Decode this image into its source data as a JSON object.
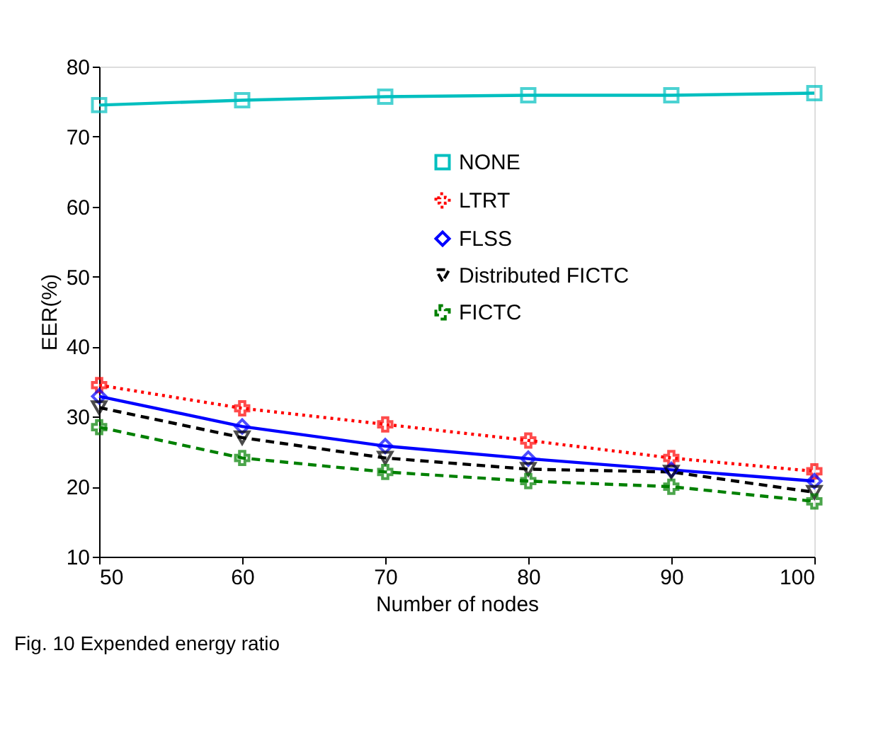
{
  "chart_data": {
    "type": "line",
    "xlabel": "Number of nodes",
    "ylabel": "EER(%)",
    "x": [
      50,
      60,
      70,
      80,
      90,
      100
    ],
    "series": [
      {
        "name": "NONE",
        "color": "#00bfbf",
        "marker": "square",
        "line_style": "solid",
        "values": [
          74.5,
          75.2,
          75.7,
          75.9,
          75.9,
          76.2
        ]
      },
      {
        "name": "LTRT",
        "color": "#ff0000",
        "marker": "cross",
        "line_style": "dotted",
        "values": [
          34.5,
          31.2,
          28.9,
          26.6,
          24.1,
          22.2
        ]
      },
      {
        "name": "FLSS",
        "color": "#0000ff",
        "marker": "diamond",
        "line_style": "solid",
        "values": [
          32.9,
          28.6,
          25.8,
          24.0,
          22.4,
          20.8
        ]
      },
      {
        "name": "Distributed FICTC",
        "color": "#000000",
        "marker": "triangle",
        "line_style": "dashed",
        "values": [
          31.3,
          27.0,
          24.1,
          22.5,
          22.1,
          19.2
        ]
      },
      {
        "name": "FICTC",
        "color": "#008000",
        "marker": "cross",
        "line_style": "dashed",
        "values": [
          28.5,
          24.1,
          22.1,
          20.8,
          20.0,
          17.9
        ]
      }
    ],
    "xlim": [
      50,
      100
    ],
    "xticks": [
      50,
      60,
      70,
      80,
      90,
      100
    ],
    "ylim": [
      10,
      80
    ],
    "yticks": [
      10,
      20,
      30,
      40,
      50,
      60,
      70,
      80
    ],
    "grid": false,
    "legend": "top right",
    "annotations": [
      "Fig. 10 Expended energy ratio"
    ]
  }
}
